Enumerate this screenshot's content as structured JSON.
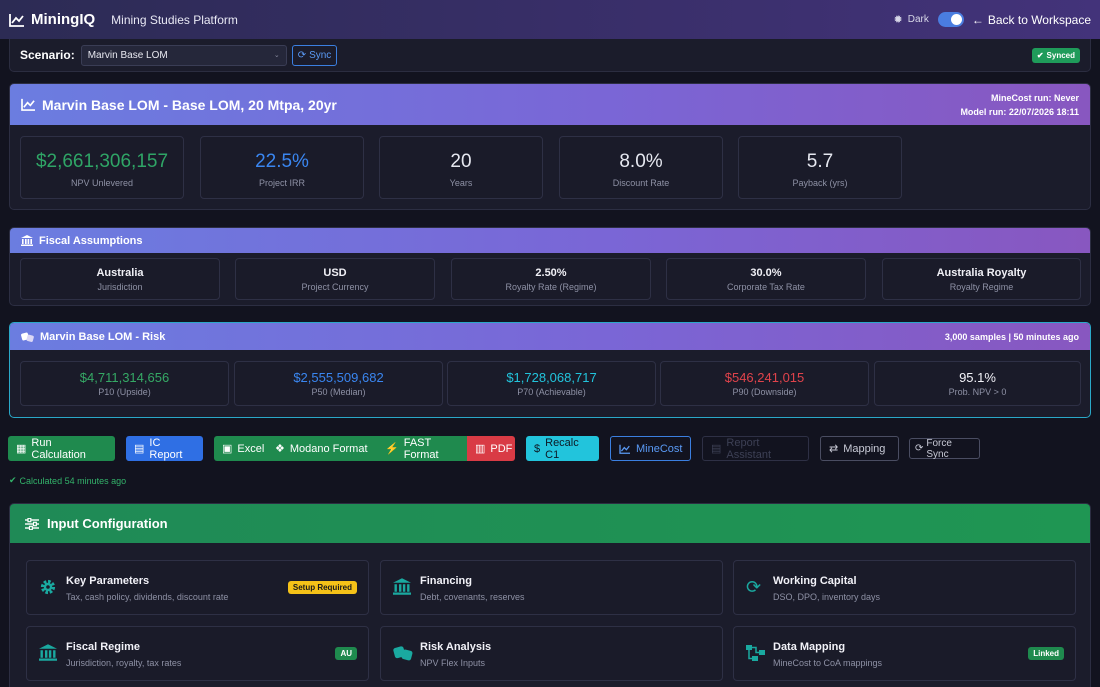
{
  "header": {
    "brand": "MiningIQ",
    "subtitle": "Mining Studies Platform",
    "dark_label": "Dark",
    "back_label": "Back to Workspace"
  },
  "scenario": {
    "label": "Scenario:",
    "selected": "Marvin Base LOM",
    "sync_label": "Sync",
    "status": "Synced"
  },
  "summary": {
    "title": "Marvin Base LOM - Base LOM, 20 Mtpa, 20yr",
    "minecost_run": "MineCost run: Never",
    "model_run": "Model run: 22/07/2026 18:11",
    "kpis": [
      {
        "value": "$2,661,306,157",
        "label": "NPV Unlevered",
        "color": "#2fa566"
      },
      {
        "value": "22.5%",
        "label": "Project IRR",
        "color": "#3a86f0"
      },
      {
        "value": "20",
        "label": "Years",
        "color": "#f2f2f8"
      },
      {
        "value": "8.0%",
        "label": "Discount Rate",
        "color": "#f2f2f8"
      },
      {
        "value": "5.7",
        "label": "Payback (yrs)",
        "color": "#f2f2f8"
      }
    ]
  },
  "fiscal": {
    "title": "Fiscal Assumptions",
    "items": [
      {
        "value": "Australia",
        "label": "Jurisdiction"
      },
      {
        "value": "USD",
        "label": "Project Currency"
      },
      {
        "value": "2.50%",
        "label": "Royalty Rate (Regime)"
      },
      {
        "value": "30.0%",
        "label": "Corporate Tax Rate"
      },
      {
        "value": "Australia Royalty",
        "label": "Royalty Regime"
      }
    ]
  },
  "risk": {
    "title": "Marvin Base LOM - Risk",
    "meta": "3,000 samples | 50 minutes ago",
    "items": [
      {
        "value": "$4,711,314,656",
        "label": "P10 (Upside)",
        "color": "#35a865"
      },
      {
        "value": "$2,555,509,682",
        "label": "P50 (Median)",
        "color": "#3a86f0"
      },
      {
        "value": "$1,728,068,717",
        "label": "P70 (Achievable)",
        "color": "#22c4dc"
      },
      {
        "value": "$546,241,015",
        "label": "P90 (Downside)",
        "color": "#e0434b"
      },
      {
        "value": "95.1%",
        "label": "Prob. NPV > 0",
        "color": "#f2f2f8"
      }
    ]
  },
  "actions": {
    "run_calculation": "Run Calculation",
    "ic_report": "IC Report",
    "excel": "Excel",
    "modano": "Modano Format",
    "fast": "FAST Format",
    "pdf": "PDF",
    "recalc": "Recalc C1",
    "minecost": "MineCost",
    "report_assistant": "Report Assistant",
    "mapping": "Mapping",
    "force_sync": "Force Sync",
    "status": "Calculated 54 minutes ago"
  },
  "input_config": {
    "title": "Input Configuration",
    "tiles": [
      {
        "title": "Key Parameters",
        "desc": "Tax, cash policy, dividends, discount rate",
        "badge": "Setup Required",
        "icon": "gear-icon"
      },
      {
        "title": "Financing",
        "desc": "Debt, covenants, reserves",
        "badge": "",
        "icon": "bank-icon"
      },
      {
        "title": "Working Capital",
        "desc": "DSO, DPO, inventory days",
        "badge": "",
        "icon": "sync-icon"
      },
      {
        "title": "Fiscal Regime",
        "desc": "Jurisdiction, royalty, tax rates",
        "badge": "AU",
        "icon": "bank-icon"
      },
      {
        "title": "Risk Analysis",
        "desc": "NPV Flex Inputs",
        "badge": "",
        "icon": "dice-icon"
      },
      {
        "title": "Data Mapping",
        "desc": "MineCost to CoA mappings",
        "badge": "Linked",
        "icon": "flow-icon"
      }
    ]
  }
}
